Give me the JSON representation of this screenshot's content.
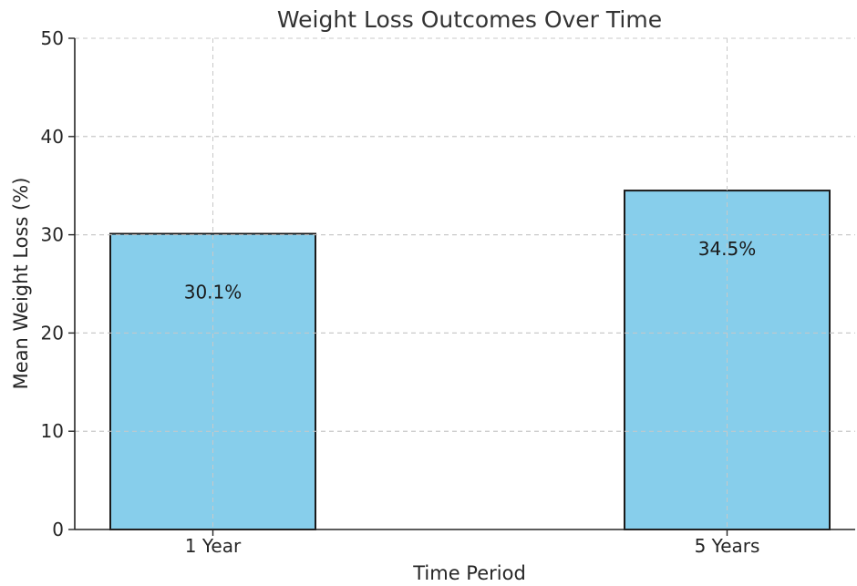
{
  "chart_data": {
    "type": "bar",
    "title": "Weight Loss Outcomes Over Time",
    "xlabel": "Time Period",
    "ylabel": "Mean Weight Loss (%)",
    "categories": [
      "1 Year",
      "5 Years"
    ],
    "values": [
      30.1,
      34.5
    ],
    "data_labels": [
      "30.1%",
      "34.5%"
    ],
    "ylim": [
      0,
      50
    ],
    "yticks": [
      0,
      10,
      20,
      30,
      40,
      50
    ],
    "grid": true,
    "bar_color": "#87CEEB",
    "bar_edge_color": "#1a1a1a"
  }
}
